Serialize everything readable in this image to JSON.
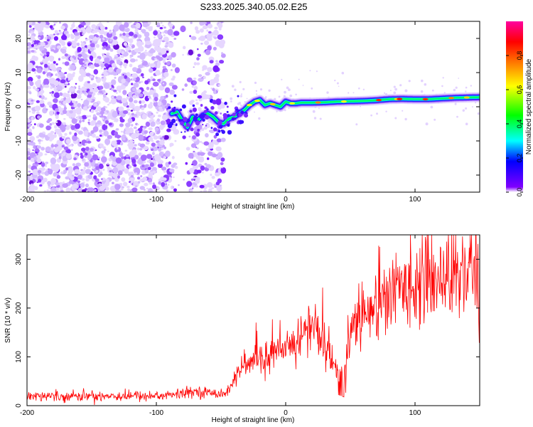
{
  "title": "S233.2025.340.05.02.E25",
  "chart_data": [
    {
      "type": "heatmap",
      "xlabel": "Height of straight line (km)",
      "ylabel": "Frequency (Hz)",
      "xlim": [
        -200,
        150
      ],
      "ylim": [
        -25,
        25
      ],
      "xticks": [
        -200,
        -100,
        0,
        100
      ],
      "yticks": [
        -20,
        -10,
        0,
        10,
        20
      ],
      "colorbar": {
        "label": "Normalized spectral amplitude",
        "range": [
          0,
          1
        ],
        "ticks": [
          0.0,
          0.2,
          0.4,
          0.6,
          0.8
        ],
        "colors": [
          "#ffffff",
          "#7f00ff",
          "#0000ff",
          "#00ffff",
          "#00ff00",
          "#ffff00",
          "#ff7f00",
          "#ff0000",
          "#ff00ff"
        ]
      },
      "noise_region": [
        -200,
        -48
      ],
      "noise_gap": [
        -84,
        -74
      ],
      "signal_trace": {
        "x": [
          -88,
          -84,
          -80,
          -76,
          -72,
          -68,
          -64,
          -60,
          -56,
          -52,
          -48,
          -44,
          -40,
          -36,
          -32,
          -28,
          -24,
          -20,
          -16,
          -12,
          -8,
          -4,
          0,
          4,
          8,
          12,
          20,
          30,
          40,
          50,
          60,
          70,
          80,
          90,
          100,
          110,
          120,
          130,
          140,
          150
        ],
        "y": [
          -2,
          -1.5,
          -4,
          -6,
          -3,
          -4,
          -2.5,
          -2,
          -3,
          -4.5,
          -5,
          -3.5,
          -3,
          -2,
          -1,
          0.5,
          1.5,
          2,
          0.5,
          1,
          0.5,
          0,
          1.5,
          1,
          1,
          1.2,
          1.2,
          1.3,
          1.5,
          1.6,
          1.7,
          1.9,
          2.2,
          2.3,
          2.2,
          2.2,
          2.4,
          2.6,
          2.7,
          2.8
        ]
      }
    },
    {
      "type": "line",
      "xlabel": "Height of straight line (km)",
      "ylabel": "SNR (10 * v/v)",
      "xlim": [
        -200,
        150
      ],
      "ylim": [
        0,
        350
      ],
      "xticks": [
        -200,
        -100,
        0,
        100
      ],
      "yticks": [
        0,
        100,
        200,
        300
      ],
      "color": "#ff0000",
      "envelope": {
        "x": [
          -200,
          -150,
          -100,
          -80,
          -70,
          -60,
          -45,
          -40,
          -35,
          -20,
          -10,
          0,
          10,
          20,
          25,
          30,
          40,
          45,
          50,
          60,
          70,
          80,
          90,
          100,
          110,
          120,
          130,
          140,
          150
        ],
        "y": [
          20,
          20,
          20,
          24,
          30,
          26,
          26,
          55,
          75,
          95,
          105,
          110,
          140,
          165,
          155,
          115,
          75,
          60,
          160,
          190,
          205,
          220,
          245,
          255,
          260,
          265,
          270,
          275,
          280
        ]
      }
    }
  ]
}
